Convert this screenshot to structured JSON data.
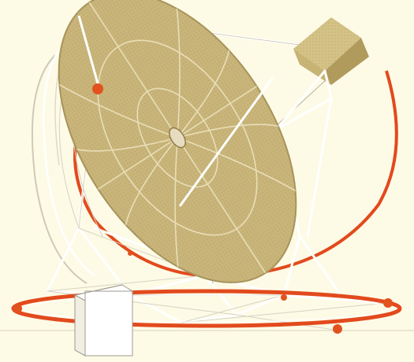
{
  "colors": {
    "background": "#fdfbe6",
    "dish_fill": "#c9b57a",
    "dish_edge": "#a8945c",
    "dish_ribs": "#efe6c4",
    "truss": "#ffffff",
    "truss_shadow": "#b8b3a2",
    "tracking_ring": "#e24a1d",
    "node_ball": "#e2521e",
    "receiver_box": "#c2ad72",
    "base_box": "#ffffff",
    "base_box_edge": "#9d9a8e"
  },
  "icons": {
    "dish": "parabolic-dish-icon",
    "receiver": "receiver-box-icon",
    "base": "base-cabinet-icon"
  }
}
